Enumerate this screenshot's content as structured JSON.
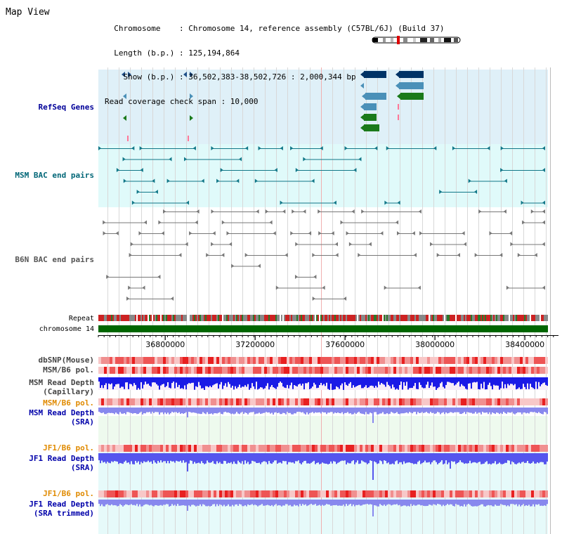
{
  "title": "Map View",
  "header": {
    "chromosome_line": "  Chromosome    : Chromosome 14, reference assembly (C57BL/6J) (Build 37)",
    "length_line": "  Length (b.p.) : 125,194,864",
    "show_line": "    Show (b.p.) : 36,502,383-38,502,726 : 2,000,344 bp",
    "coverage_line": "Read coverage check span : 10,000"
  },
  "tracks": [
    {
      "key": "refseq",
      "label": "RefSeq Genes",
      "label_color": "#000099"
    },
    {
      "key": "msm_bac",
      "label": "MSM BAC end pairs",
      "label_color": "#006677"
    },
    {
      "key": "b6n_bac",
      "label": "B6N BAC end pairs",
      "label_color": "#555555"
    },
    {
      "key": "repeat",
      "label": "Repeat",
      "label_color": "#000000"
    },
    {
      "key": "chromosome",
      "label": "chromosome 14",
      "label_color": "#000000"
    },
    {
      "key": "dbsnp",
      "label": "dbSNP(Mouse)",
      "label_color": "#444444"
    },
    {
      "key": "msm_pol_cap",
      "label": "MSM/B6 pol.",
      "label_color": "#444444"
    },
    {
      "key": "msm_depth_cap",
      "label": "MSM Read Depth",
      "label_color": "#444444"
    },
    {
      "key": "msm_depth_cap2",
      "label": "(Capillary)",
      "label_color": "#444444"
    },
    {
      "key": "msm_pol_sra",
      "label": "MSM/B6 pol.",
      "label_color": "#e08a00"
    },
    {
      "key": "msm_depth_sra",
      "label": "MSM Read Depth",
      "label_color": "#0000aa"
    },
    {
      "key": "msm_depth_sra2",
      "label": "(SRA)",
      "label_color": "#0000aa"
    },
    {
      "key": "jf1_pol",
      "label": "JF1/B6 pol.",
      "label_color": "#e08a00"
    },
    {
      "key": "jf1_depth",
      "label": "JF1 Read Depth",
      "label_color": "#0000aa"
    },
    {
      "key": "jf1_depth2",
      "label": "(SRA)",
      "label_color": "#0000aa"
    },
    {
      "key": "jf1_pol_t",
      "label": "JF1/B6 pol.",
      "label_color": "#e08a00"
    },
    {
      "key": "jf1_depth_t",
      "label": "JF1 Read Depth",
      "label_color": "#0000aa"
    },
    {
      "key": "jf1_depth_t2",
      "label": "(SRA trimmed)",
      "label_color": "#0000aa"
    }
  ],
  "ruler": {
    "ticks": [
      "36800000",
      "37200000",
      "37600000",
      "38000000",
      "38400000"
    ],
    "tick_values": [
      36800000,
      37200000,
      37600000,
      38000000,
      38400000
    ],
    "range": [
      36502383,
      38502726
    ]
  },
  "colors": {
    "refseq_bg": "#dff0f8",
    "msm_bac_bg": "#e0fafa",
    "chromosome": "#006600",
    "msm_bac_line": "#117788",
    "b6n_bac_line": "#777777",
    "depth_blue": "#1a1ae6",
    "depth_light": "#7777ee",
    "pol_red": "#ee3333"
  }
}
